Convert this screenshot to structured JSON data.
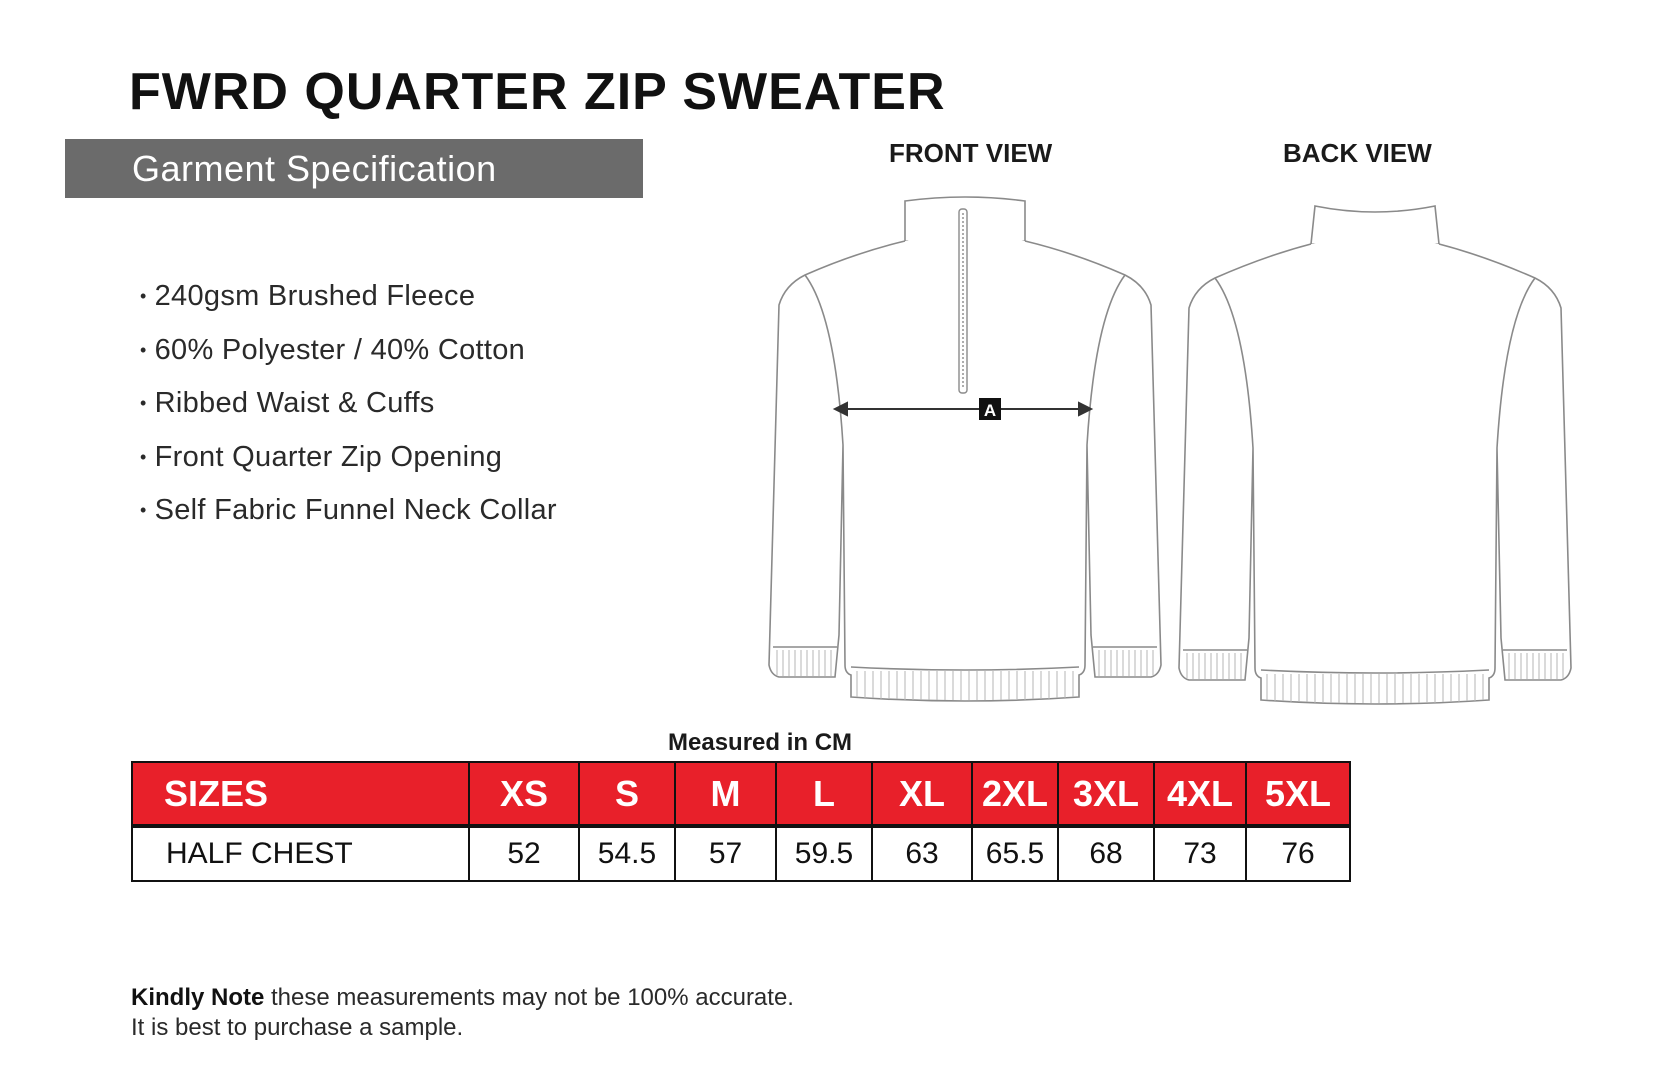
{
  "title": "FWRD QUARTER ZIP SWEATER",
  "subtitle": "Garment Specification",
  "features": [
    "240gsm Brushed Fleece",
    "60% Polyester / 40% Cotton",
    "Ribbed Waist & Cuffs",
    "Front Quarter Zip Opening",
    "Self Fabric Funnel Neck Collar"
  ],
  "views": {
    "front_label": "FRONT VIEW",
    "back_label": "BACK VIEW",
    "measure_marker": "A"
  },
  "measured_label": "Measured in CM",
  "size_table": {
    "header_label": "SIZES",
    "sizes": [
      "XS",
      "S",
      "M",
      "L",
      "XL",
      "2XL",
      "3XL",
      "4XL",
      "5XL"
    ],
    "row_label": "HALF CHEST",
    "values": [
      "52",
      "54.5",
      "57",
      "59.5",
      "63",
      "65.5",
      "68",
      "73",
      "76"
    ],
    "header_color": "#e8202a"
  },
  "note": {
    "bold": "Kindly Note",
    "text": " these measurements may not be 100% accurate.",
    "line2": "It is best to purchase a sample."
  }
}
